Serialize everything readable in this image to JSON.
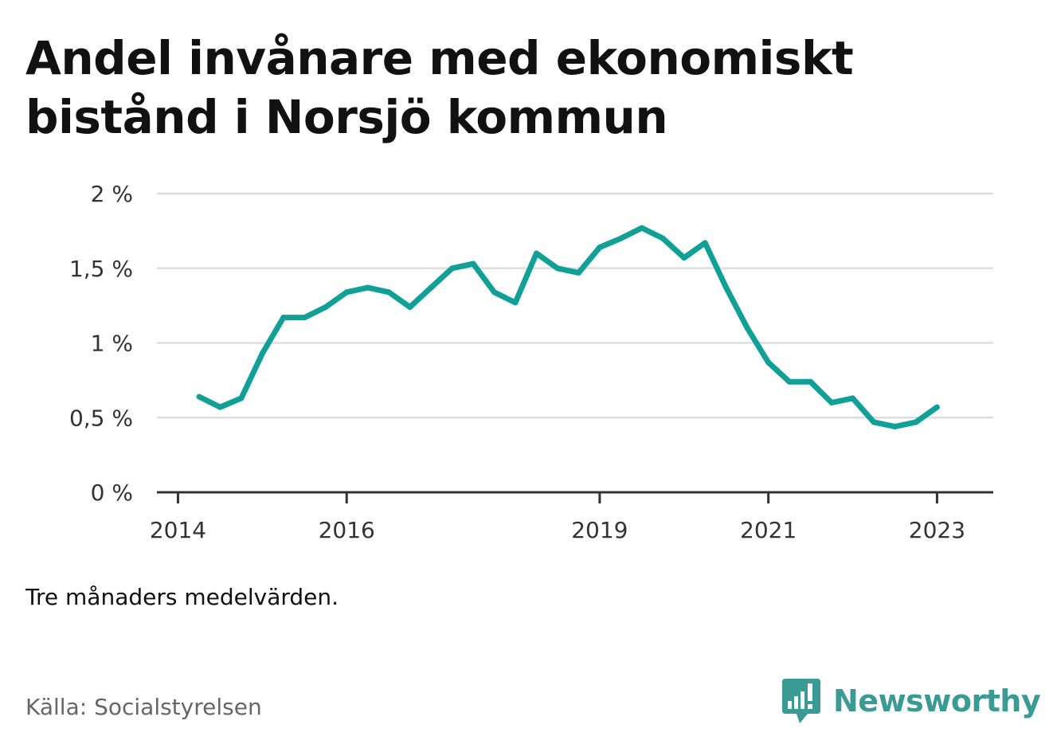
{
  "header": {
    "title": "Andel invånare med ekonomiskt bistånd i Norsjö kommun"
  },
  "footer": {
    "note": "Tre månaders medelvärden.",
    "source": "Källa: Socialstyrelsen",
    "brand": "Newsworthy",
    "brand_icon": "speech-bubble-bar-chart-icon",
    "brand_color": "#3a9a94"
  },
  "chart_data": {
    "type": "line",
    "title": "Andel invånare med ekonomiskt bistånd i Norsjö kommun",
    "xlabel": "",
    "ylabel": "",
    "ylim": [
      0,
      2
    ],
    "xlim": [
      "2013-10",
      "2023-09"
    ],
    "yticks": [
      {
        "value": 0,
        "label": "0 %"
      },
      {
        "value": 0.5,
        "label": "0,5 %"
      },
      {
        "value": 1,
        "label": "1 %"
      },
      {
        "value": 1.5,
        "label": "1,5 %"
      },
      {
        "value": 2,
        "label": "2 %"
      }
    ],
    "xticks": [
      {
        "value": "2014-01",
        "label": "2014"
      },
      {
        "value": "2016-01",
        "label": "2016"
      },
      {
        "value": "2019-01",
        "label": "2019"
      },
      {
        "value": "2021-01",
        "label": "2021"
      },
      {
        "value": "2023-01",
        "label": "2023"
      }
    ],
    "grid": true,
    "line_color": "#10a098",
    "series": [
      {
        "x": [
          "2014-04",
          "2014-07",
          "2014-10",
          "2015-01",
          "2015-04",
          "2015-07",
          "2015-10",
          "2016-01",
          "2016-04",
          "2016-07",
          "2016-10",
          "2017-01",
          "2017-04",
          "2017-07",
          "2017-10",
          "2018-01",
          "2018-04",
          "2018-07",
          "2018-10",
          "2019-01",
          "2019-04",
          "2019-07",
          "2019-10",
          "2020-01",
          "2020-04",
          "2020-07",
          "2020-10",
          "2021-01",
          "2021-04",
          "2021-07",
          "2021-10",
          "2022-01",
          "2022-04",
          "2022-07",
          "2022-10",
          "2023-01"
        ],
        "values": [
          0.64,
          0.57,
          0.63,
          0.93,
          1.17,
          1.17,
          1.24,
          1.34,
          1.37,
          1.34,
          1.24,
          1.37,
          1.5,
          1.53,
          1.34,
          1.27,
          1.6,
          1.5,
          1.47,
          1.64,
          1.7,
          1.77,
          1.7,
          1.57,
          1.67,
          1.37,
          1.1,
          0.87,
          0.74,
          0.74,
          0.6,
          0.63,
          0.47,
          0.44,
          0.47,
          0.57
        ]
      }
    ]
  }
}
